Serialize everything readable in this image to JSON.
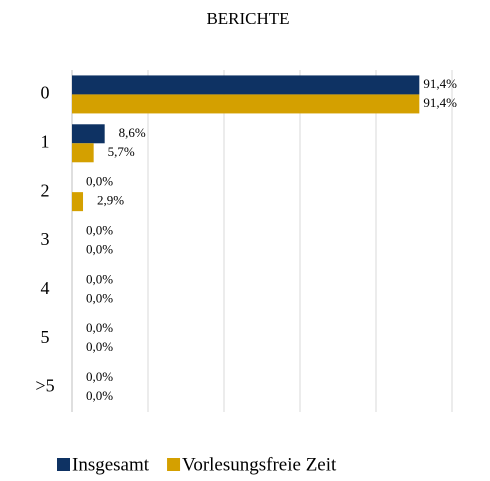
{
  "chart_data": {
    "type": "hbar",
    "title": "BERICHTE",
    "categories": [
      "0",
      "1",
      "2",
      "3",
      "4",
      "5",
      ">5"
    ],
    "series": [
      {
        "name": "Insgesamt",
        "color": "#0e3263",
        "values": [
          91.4,
          8.6,
          0,
          0,
          0,
          0,
          0
        ],
        "value_labels": [
          "91,4%",
          "8,6%",
          "0,0%",
          "0,0%",
          "0,0%",
          "0,0%",
          "0,0%"
        ]
      },
      {
        "name": "Vorlesungsfreie Zeit",
        "color": "#d4a000",
        "values": [
          91.4,
          5.7,
          2.9,
          0,
          0,
          0,
          0
        ],
        "value_labels": [
          "91,4%",
          "5,7%",
          "2,9%",
          "0,0%",
          "0,0%",
          "0,0%",
          "0,0%"
        ]
      }
    ],
    "xlim": [
      0,
      100
    ],
    "xticks": [
      0,
      20,
      40,
      60,
      80,
      100
    ],
    "grid": true,
    "legend": "bottom"
  }
}
